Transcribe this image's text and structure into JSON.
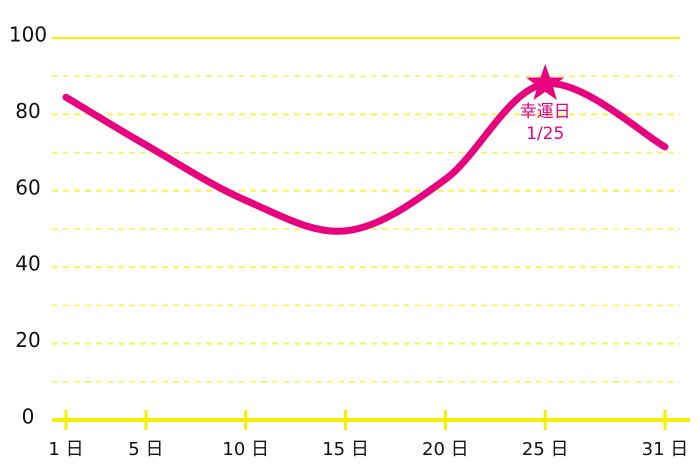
{
  "chart_data": {
    "type": "line",
    "x": [
      1,
      5,
      10,
      15,
      20,
      25,
      31
    ],
    "series": [
      {
        "color": "#e8007f",
        "values": [
          84.5,
          72,
          57.5,
          49.5,
          63,
          88,
          71.5
        ]
      }
    ],
    "xlim": [
      1,
      31
    ],
    "xticks": [
      {
        "value": 1,
        "label": "1 日"
      },
      {
        "value": 5,
        "label": "5 日"
      },
      {
        "value": 10,
        "label": "10 日"
      },
      {
        "value": 15,
        "label": "15 日"
      },
      {
        "value": 20,
        "label": "20 日"
      },
      {
        "value": 25,
        "label": "25 日"
      },
      {
        "value": 31,
        "label": "31 日"
      }
    ],
    "ylim": [
      0,
      100
    ],
    "yticks": [
      0,
      20,
      40,
      60,
      80,
      100
    ],
    "minor_yticks": [
      10,
      30,
      50,
      70,
      90
    ],
    "grid": true,
    "axis_color": "#f5f000",
    "annotation": {
      "x": 25,
      "text": [
        "幸運日",
        "1/25"
      ]
    }
  }
}
